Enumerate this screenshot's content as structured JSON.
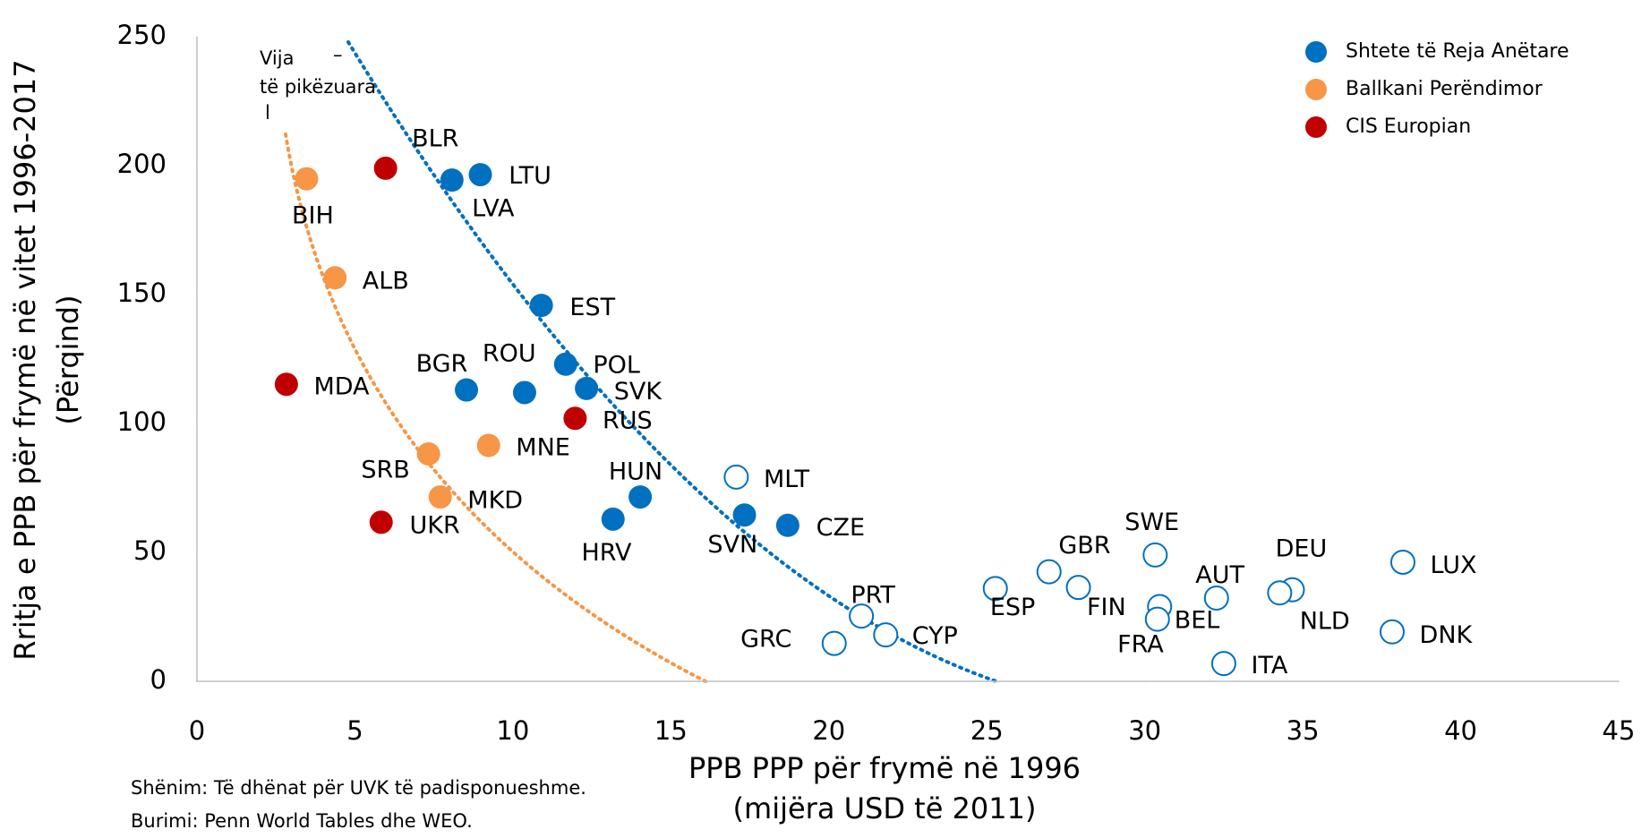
{
  "chart_data": {
    "type": "scatter",
    "xlabel": [
      "PPB PPP për frymë në 1996",
      "(mijëra USD të 2011)"
    ],
    "ylabel": [
      "Rritja e PPB për frymë në vitet 1996-2017",
      "(Përqind)"
    ],
    "xlim": [
      0,
      45
    ],
    "xticks": [
      0,
      5,
      10,
      15,
      20,
      25,
      30,
      35,
      40,
      45
    ],
    "ylim": [
      0,
      250
    ],
    "yticks": [
      0,
      50,
      100,
      150,
      200,
      250
    ],
    "legend": "top-right",
    "annotation": [
      "Vija",
      "–",
      "të pikëzuara",
      "l"
    ],
    "notes": [
      "Shënim: Të dhënat për UVK të padisponueshme.",
      "Burimi: Penn World Tables dhe WEO."
    ],
    "series": [
      {
        "name": "Shtete të Reja Anëtare",
        "color": "#0070c0",
        "labels": [
          "LTU",
          "LVA",
          "EST",
          "POL",
          "ROU",
          "BGR",
          "SVK",
          "HUN",
          "HRV",
          "SVN",
          "CZE"
        ],
        "x": [
          8.97,
          8.07,
          10.9,
          11.67,
          10.37,
          8.53,
          12.33,
          14.03,
          13.17,
          17.33,
          18.7
        ],
        "y": [
          196.5,
          194.4,
          145.8,
          123,
          112,
          113,
          113.6,
          71.5,
          62.9,
          64.5,
          60.5
        ]
      },
      {
        "name": "Ballkani Perëndimor",
        "color": "#f79646",
        "labels": [
          "BIH",
          "ALB",
          "SRB",
          "MNE",
          "MKD"
        ],
        "x": [
          3.47,
          4.37,
          7.33,
          9.23,
          7.7
        ],
        "y": [
          194.9,
          156.5,
          88.2,
          91.5,
          71.5
        ]
      },
      {
        "name": "CIS Europian",
        "color": "#c00000",
        "labels": [
          "BLR",
          "MDA",
          "RUS",
          "UKR"
        ],
        "x": [
          5.97,
          2.83,
          11.97,
          5.83
        ],
        "y": [
          199,
          115.2,
          102,
          61.7
        ]
      },
      {
        "color": "#0070c0",
        "hollow": true,
        "labels": [
          "MLT",
          "SWE",
          "GBR",
          "FIN",
          "ESP",
          "PRT",
          "CYP",
          "GRC",
          "BEL",
          "FRA",
          "AUT",
          "ITA",
          "DEU",
          "NLD",
          "LUX",
          "DNK"
        ],
        "x": [
          17.07,
          30.33,
          26.97,
          27.9,
          25.27,
          21.03,
          21.8,
          20.17,
          30.47,
          30.4,
          32.27,
          32.5,
          34.67,
          34.27,
          38.17,
          37.83
        ],
        "y": [
          79.2,
          49,
          42.5,
          36.4,
          36,
          25.3,
          18,
          14.7,
          29,
          24.1,
          32.3,
          6.9,
          35.5,
          34.3,
          46.2,
          19.2
        ]
      }
    ]
  }
}
